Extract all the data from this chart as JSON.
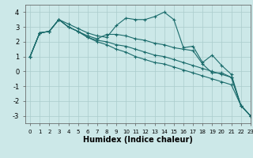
{
  "xlabel": "Humidex (Indice chaleur)",
  "ylabel": "",
  "xlim": [
    -0.5,
    23
  ],
  "ylim": [
    -3.5,
    4.5
  ],
  "yticks": [
    -3,
    -2,
    -1,
    0,
    1,
    2,
    3,
    4
  ],
  "xticks": [
    0,
    1,
    2,
    3,
    4,
    5,
    6,
    7,
    8,
    9,
    10,
    11,
    12,
    13,
    14,
    15,
    16,
    17,
    18,
    19,
    20,
    21,
    22,
    23
  ],
  "background_color": "#cce8e8",
  "grid_color": "#aacccc",
  "line_color": "#1a6b6b",
  "lines": [
    [
      1,
      2.6,
      2.7,
      3.5,
      3.2,
      2.9,
      2.6,
      2.4,
      2.3,
      3.1,
      3.6,
      3.5,
      3.5,
      3.7,
      4.0,
      3.5,
      1.6,
      1.7,
      0.6,
      1.1,
      0.4,
      -0.2,
      -2.3,
      -3.0
    ],
    [
      1,
      2.6,
      2.7,
      3.5,
      3.0,
      2.7,
      2.4,
      2.2,
      2.5,
      2.5,
      2.4,
      2.2,
      2.1,
      1.9,
      1.8,
      1.6,
      1.5,
      1.4,
      0.5,
      -0.1,
      -0.1,
      -0.4,
      -2.3,
      -3.0
    ],
    [
      1,
      2.6,
      2.7,
      3.5,
      3.0,
      2.7,
      2.3,
      2.1,
      2.0,
      1.8,
      1.7,
      1.5,
      1.3,
      1.1,
      1.0,
      0.8,
      0.6,
      0.4,
      0.2,
      0.0,
      -0.2,
      -0.4,
      -2.3,
      -3.0
    ],
    [
      1,
      2.6,
      2.7,
      3.5,
      3.0,
      2.7,
      2.3,
      2.0,
      1.8,
      1.5,
      1.3,
      1.0,
      0.8,
      0.6,
      0.5,
      0.3,
      0.1,
      -0.1,
      -0.3,
      -0.5,
      -0.7,
      -0.9,
      -2.3,
      -3.0
    ]
  ]
}
